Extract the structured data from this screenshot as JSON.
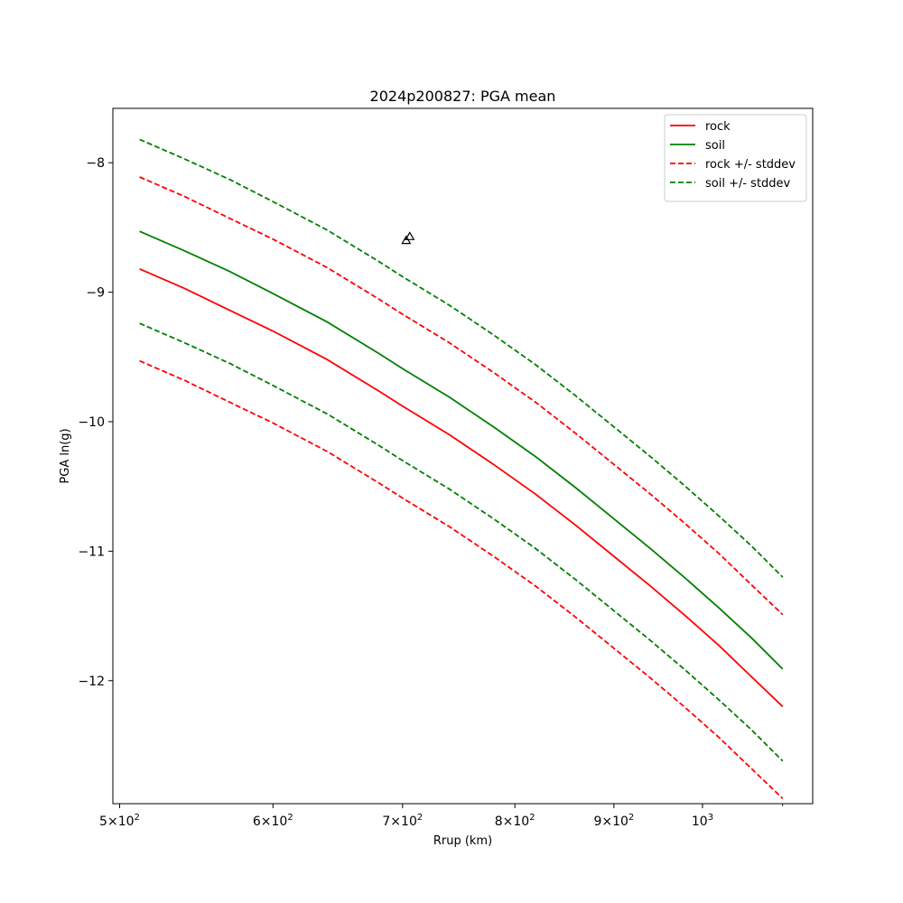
{
  "chart_data": {
    "type": "line",
    "title": "2024p200827: PGA mean",
    "xlabel": "Rrup (km)",
    "ylabel": "PGA ln(g)",
    "xscale": "log",
    "xlim": [
      496,
      1140
    ],
    "ylim": [
      -12.95,
      -7.58
    ],
    "grid": false,
    "legend_position": "top-right",
    "x_ticks": [
      {
        "value": 500,
        "mantissa": "5",
        "base": "10",
        "exp": "2"
      },
      {
        "value": 600,
        "mantissa": "6",
        "base": "10",
        "exp": "2"
      },
      {
        "value": 700,
        "mantissa": "7",
        "base": "10",
        "exp": "2"
      },
      {
        "value": 800,
        "mantissa": "8",
        "base": "10",
        "exp": "2"
      },
      {
        "value": 900,
        "mantissa": "9",
        "base": "10",
        "exp": "2"
      },
      {
        "value": 1000,
        "mantissa": "",
        "base": "10",
        "exp": "3"
      }
    ],
    "y_ticks": [
      {
        "value": -8,
        "label": "−8"
      },
      {
        "value": -9,
        "label": "−9"
      },
      {
        "value": -10,
        "label": "−10"
      },
      {
        "value": -11,
        "label": "−11"
      },
      {
        "value": -12,
        "label": "−12"
      }
    ],
    "x": [
      512,
      540,
      570,
      600,
      640,
      680,
      700,
      740,
      780,
      820,
      860,
      900,
      940,
      980,
      1020,
      1060,
      1100
    ],
    "series": [
      {
        "name": "rock",
        "color": "#ff0000",
        "dash": "solid",
        "values": [
          -8.82,
          -8.97,
          -9.14,
          -9.3,
          -9.52,
          -9.76,
          -9.88,
          -10.1,
          -10.33,
          -10.56,
          -10.8,
          -11.04,
          -11.27,
          -11.5,
          -11.73,
          -11.97,
          -12.2
        ]
      },
      {
        "name": "soil",
        "color": "#008000",
        "dash": "solid",
        "values": [
          -8.53,
          -8.68,
          -8.84,
          -9.01,
          -9.23,
          -9.47,
          -9.59,
          -9.81,
          -10.04,
          -10.27,
          -10.51,
          -10.75,
          -10.98,
          -11.21,
          -11.44,
          -11.67,
          -11.91
        ]
      },
      {
        "name": "rock +/- stddev",
        "color": "#ff0000",
        "dash": "dashed",
        "values": [
          -8.11,
          -8.26,
          -8.43,
          -8.59,
          -8.81,
          -9.05,
          -9.17,
          -9.39,
          -9.62,
          -9.85,
          -10.09,
          -10.33,
          -10.56,
          -10.79,
          -11.02,
          -11.26,
          -11.49
        ]
      },
      {
        "name": "",
        "color": "#ff0000",
        "dash": "dashed",
        "values": [
          -9.53,
          -9.68,
          -9.85,
          -10.01,
          -10.23,
          -10.47,
          -10.59,
          -10.81,
          -11.04,
          -11.27,
          -11.51,
          -11.75,
          -11.98,
          -12.21,
          -12.44,
          -12.68,
          -12.91
        ]
      },
      {
        "name": "soil +/- stddev",
        "color": "#008000",
        "dash": "dashed",
        "values": [
          -7.82,
          -7.97,
          -8.13,
          -8.3,
          -8.52,
          -8.76,
          -8.88,
          -9.1,
          -9.33,
          -9.56,
          -9.8,
          -10.04,
          -10.27,
          -10.5,
          -10.73,
          -10.96,
          -11.2
        ]
      },
      {
        "name": "",
        "color": "#008000",
        "dash": "dashed",
        "values": [
          -9.24,
          -9.39,
          -9.55,
          -9.72,
          -9.94,
          -10.18,
          -10.3,
          -10.52,
          -10.75,
          -10.98,
          -11.22,
          -11.46,
          -11.69,
          -11.92,
          -12.15,
          -12.38,
          -12.62
        ]
      }
    ],
    "observations": [
      {
        "x": 703,
        "y": -8.6,
        "marker": "triangle-open"
      },
      {
        "x": 706,
        "y": -8.57,
        "marker": "triangle-open"
      }
    ]
  }
}
